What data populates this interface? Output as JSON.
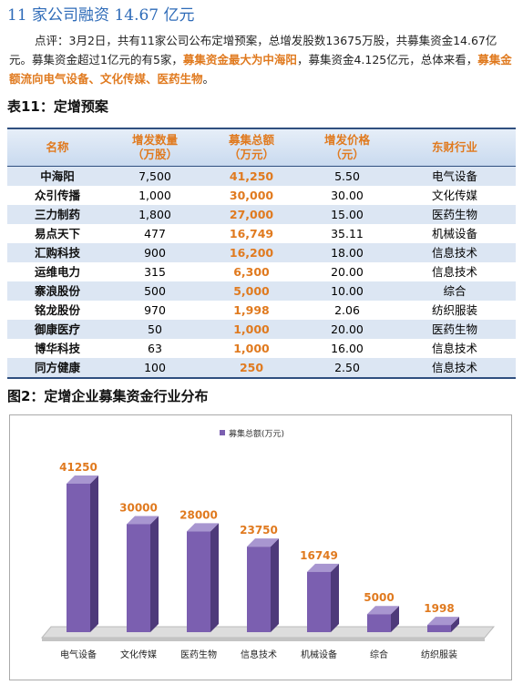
{
  "header": {
    "title": "11 家公司融资 14.67 亿元"
  },
  "paragraph": {
    "segments": [
      {
        "text": "点评：3月2日，共有11家公司公布定增预案，总增发股数13675万股，共募集资金14.67亿元。募集资金超过1亿元的有5家，",
        "emphasis": false
      },
      {
        "text": "募集资金最大为中海阳",
        "emphasis": true
      },
      {
        "text": "，募集资金4.125亿元，总体来看，",
        "emphasis": false
      },
      {
        "text": "募集金额流向电气设备、文化传媒、医药生物",
        "emphasis": true
      },
      {
        "text": "。",
        "emphasis": false
      }
    ]
  },
  "table": {
    "caption": "表11：定增预案",
    "columns": [
      [
        "名称"
      ],
      [
        "增发数量",
        "（万股）"
      ],
      [
        "募集总额",
        "（万元）"
      ],
      [
        "增发价格",
        "（元）"
      ],
      [
        "东财行业"
      ]
    ],
    "rows": [
      [
        "中海阳",
        "7,500",
        "41,250",
        "5.50",
        "电气设备"
      ],
      [
        "众引传播",
        "1,000",
        "30,000",
        "30.00",
        "文化传媒"
      ],
      [
        "三力制药",
        "1,800",
        "27,000",
        "15.00",
        "医药生物"
      ],
      [
        "易点天下",
        "477",
        "16,749",
        "35.11",
        "机械设备"
      ],
      [
        "汇购科技",
        "900",
        "16,200",
        "18.00",
        "信息技术"
      ],
      [
        "运维电力",
        "315",
        "6,300",
        "20.00",
        "信息技术"
      ],
      [
        "寨浪股份",
        "500",
        "5,000",
        "10.00",
        "综合"
      ],
      [
        "铭龙股份",
        "970",
        "1,998",
        "2.06",
        "纺织服装"
      ],
      [
        "御康医疗",
        "50",
        "1,000",
        "20.00",
        "医药生物"
      ],
      [
        "博华科技",
        "63",
        "1,000",
        "16.00",
        "信息技术"
      ],
      [
        "同方健康",
        "100",
        "250",
        "2.50",
        "信息技术"
      ]
    ]
  },
  "figure_caption": "图2：定增企业募集资金行业分布",
  "chart_data": {
    "type": "bar",
    "categories": [
      "电气设备",
      "文化传媒",
      "医药生物",
      "信息技术",
      "机械设备",
      "综合",
      "纺织服装"
    ],
    "series": [
      {
        "name": "募集总额(万元)",
        "color": "#7b5fb0",
        "values": [
          41250,
          30000,
          28000,
          23750,
          16749,
          5000,
          1998
        ]
      }
    ],
    "label_color": "#e07a1f"
  }
}
